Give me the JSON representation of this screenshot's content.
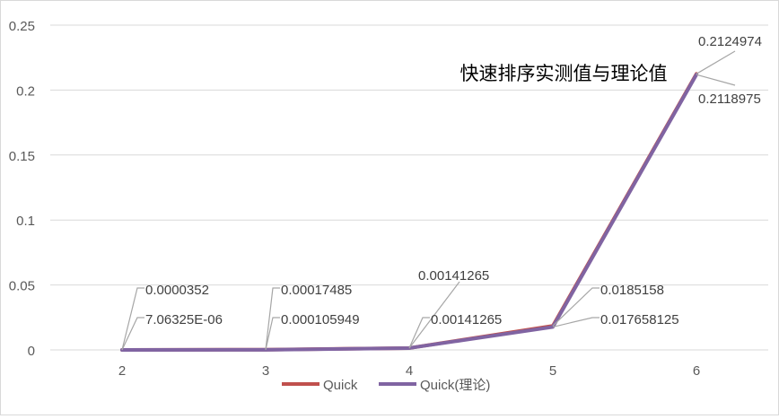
{
  "chart_data": {
    "type": "line",
    "title": "快速排序实测值与理论值",
    "xlabel": "",
    "ylabel": "",
    "categories": [
      "2",
      "3",
      "4",
      "5",
      "6"
    ],
    "ylim": [
      0,
      0.25
    ],
    "yticks": [
      "0",
      "0.05",
      "0.1",
      "0.15",
      "0.2",
      "0.25"
    ],
    "grid": true,
    "legend_position": "bottom",
    "series": [
      {
        "name": "Quick",
        "color": "#c0504d",
        "values": [
          3.52e-05,
          0.00017485,
          0.00141265,
          0.0185158,
          0.2124974
        ],
        "labels": [
          "0.0000352",
          "0.00017485",
          "0.00141265",
          "0.0185158",
          "0.2124974"
        ]
      },
      {
        "name": "Quick(理论)",
        "color": "#8064a2",
        "values": [
          7.06325e-06,
          0.000105949,
          0.00141265,
          0.017658125,
          0.2118975
        ],
        "labels": [
          "7.06325E-06",
          "0.000105949",
          "0.00141265",
          "0.017658125",
          "0.2118975"
        ]
      }
    ]
  }
}
